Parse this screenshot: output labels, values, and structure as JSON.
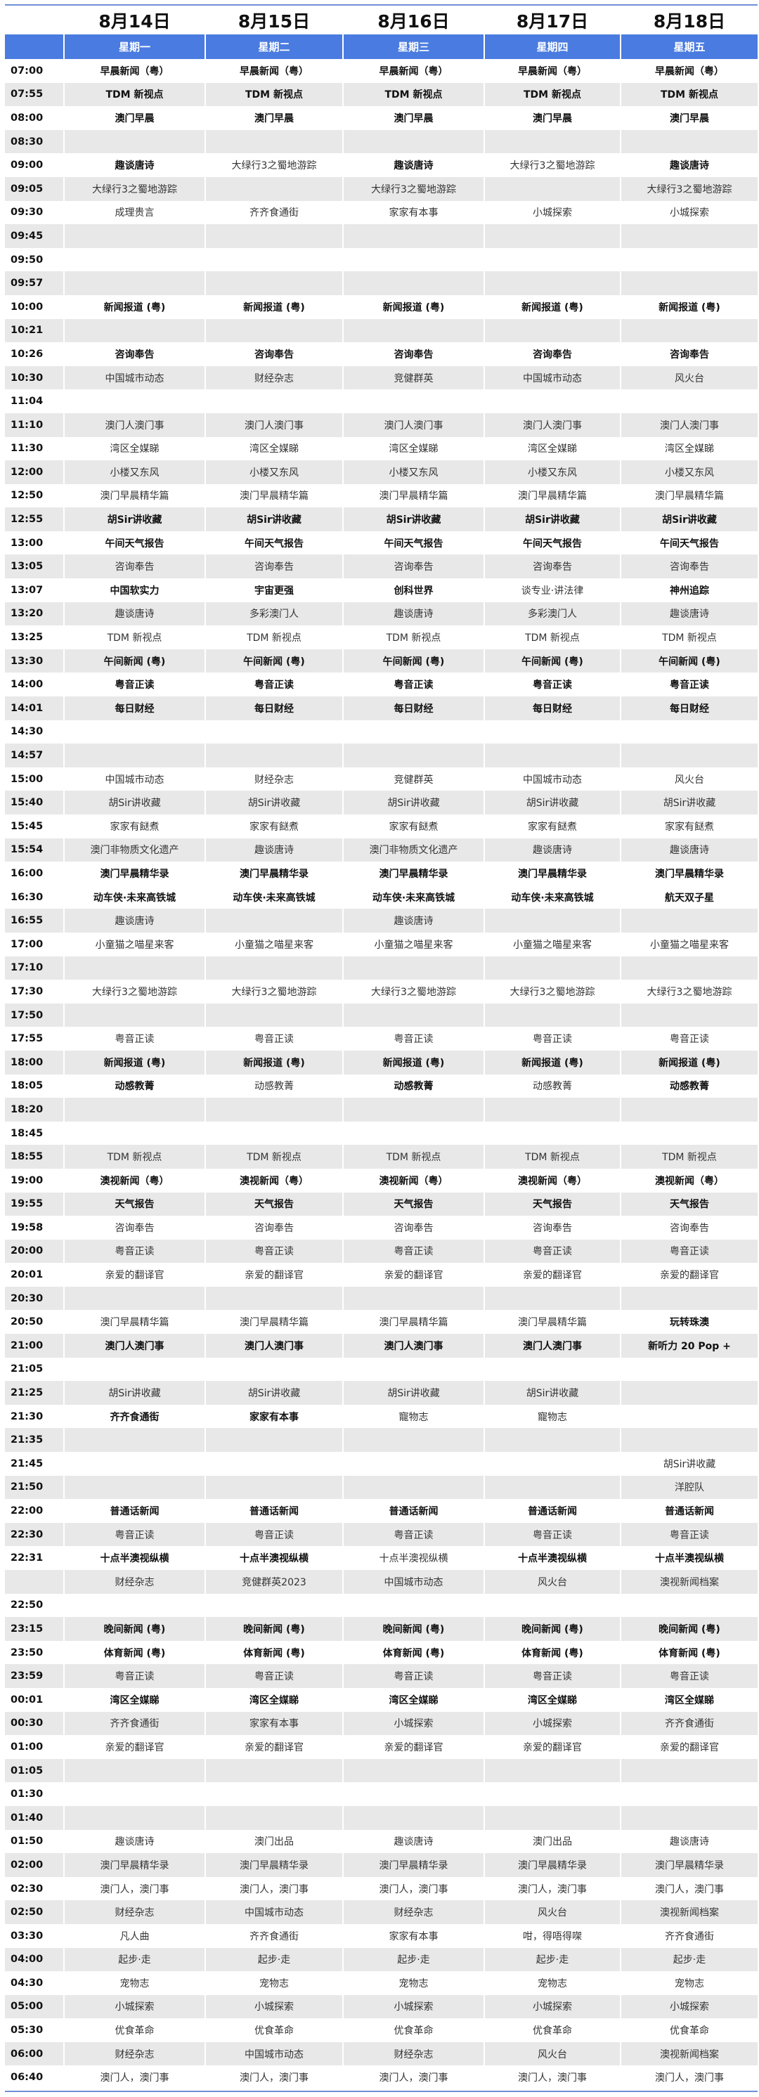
{
  "header": {
    "dates": [
      "8月14日",
      "8月15日",
      "8月16日",
      "8月17日",
      "8月18日"
    ],
    "weekdays": [
      "星期一",
      "星期二",
      "星期三",
      "星期四",
      "星期五"
    ]
  },
  "colors": {
    "header_blue": "#4a7be0",
    "row_shade": "#e8e8e8"
  },
  "rows": [
    {
      "time": "07:00",
      "cells": [
        "早晨新闻（粤）",
        "早晨新闻（粤）",
        "早晨新闻（粤）",
        "早晨新闻（粤）",
        "早晨新闻（粤）"
      ],
      "bold": [
        1,
        1,
        1,
        1,
        1
      ]
    },
    {
      "time": "07:55",
      "cells": [
        "TDM 新视点",
        "TDM 新视点",
        "TDM 新视点",
        "TDM 新视点",
        "TDM 新视点"
      ],
      "bold": [
        1,
        1,
        1,
        1,
        1
      ]
    },
    {
      "time": "08:00",
      "cells": [
        "澳门早晨",
        "澳门早晨",
        "澳门早晨",
        "澳门早晨",
        "澳门早晨"
      ],
      "bold": [
        1,
        1,
        1,
        1,
        1
      ]
    },
    {
      "time": "08:30",
      "cells": [
        "",
        "",
        "",
        "",
        ""
      ],
      "bold": [
        0,
        0,
        0,
        0,
        0
      ]
    },
    {
      "time": "09:00",
      "cells": [
        "趣谈唐诗",
        "大绿行3之蜀地游踪",
        "趣谈唐诗",
        "大绿行3之蜀地游踪",
        "趣谈唐诗"
      ],
      "bold": [
        1,
        0,
        1,
        0,
        1
      ]
    },
    {
      "time": "09:05",
      "cells": [
        "大绿行3之蜀地游踪",
        "",
        "大绿行3之蜀地游踪",
        "",
        "大绿行3之蜀地游踪"
      ],
      "bold": [
        0,
        0,
        0,
        0,
        0
      ]
    },
    {
      "time": "09:30",
      "cells": [
        "成理贵言",
        "齐齐食通街",
        "家家有本事",
        "小城探索",
        "小城探索"
      ],
      "bold": [
        0,
        0,
        0,
        0,
        0
      ]
    },
    {
      "time": "09:45",
      "cells": [
        "",
        "",
        "",
        "",
        ""
      ],
      "bold": [
        0,
        0,
        0,
        0,
        0
      ]
    },
    {
      "time": "09:50",
      "cells": [
        "",
        "",
        "",
        "",
        ""
      ],
      "bold": [
        0,
        0,
        0,
        0,
        0
      ]
    },
    {
      "time": "09:57",
      "cells": [
        "",
        "",
        "",
        "",
        ""
      ],
      "bold": [
        0,
        0,
        0,
        0,
        0
      ]
    },
    {
      "time": "10:00",
      "cells": [
        "新闻报道 (粤)",
        "新闻报道 (粤)",
        "新闻报道 (粤)",
        "新闻报道 (粤)",
        "新闻报道 (粤)"
      ],
      "bold": [
        1,
        1,
        1,
        1,
        1
      ]
    },
    {
      "time": "10:21",
      "cells": [
        "",
        "",
        "",
        "",
        ""
      ],
      "bold": [
        0,
        0,
        0,
        0,
        0
      ]
    },
    {
      "time": "10:26",
      "cells": [
        "咨询奉告",
        "咨询奉告",
        "咨询奉告",
        "咨询奉告",
        "咨询奉告"
      ],
      "bold": [
        1,
        1,
        1,
        1,
        1
      ]
    },
    {
      "time": "10:30",
      "cells": [
        "中国城市动态",
        "财经杂志",
        "竞健群英",
        "中国城市动态",
        "风火台"
      ],
      "bold": [
        0,
        0,
        0,
        0,
        0
      ]
    },
    {
      "time": "11:04",
      "cells": [
        "",
        "",
        "",
        "",
        ""
      ],
      "bold": [
        0,
        0,
        0,
        0,
        0
      ]
    },
    {
      "time": "11:10",
      "cells": [
        "澳门人澳门事",
        "澳门人澳门事",
        "澳门人澳门事",
        "澳门人澳门事",
        "澳门人澳门事"
      ],
      "bold": [
        0,
        0,
        0,
        0,
        0
      ]
    },
    {
      "time": "11:30",
      "cells": [
        "湾区全媒睇",
        "湾区全媒睇",
        "湾区全媒睇",
        "湾区全媒睇",
        "湾区全媒睇"
      ],
      "bold": [
        0,
        0,
        0,
        0,
        0
      ]
    },
    {
      "time": "12:00",
      "cells": [
        "小楼又东风",
        "小楼又东风",
        "小楼又东风",
        "小楼又东风",
        "小楼又东风"
      ],
      "bold": [
        0,
        0,
        0,
        0,
        0
      ]
    },
    {
      "time": "12:50",
      "cells": [
        "澳门早晨精华篇",
        "澳门早晨精华篇",
        "澳门早晨精华篇",
        "澳门早晨精华篇",
        "澳门早晨精华篇"
      ],
      "bold": [
        0,
        0,
        0,
        0,
        0
      ]
    },
    {
      "time": "12:55",
      "cells": [
        "胡Sir讲收藏",
        "胡Sir讲收藏",
        "胡Sir讲收藏",
        "胡Sir讲收藏",
        "胡Sir讲收藏"
      ],
      "bold": [
        1,
        1,
        1,
        1,
        1
      ]
    },
    {
      "time": "13:00",
      "cells": [
        "午间天气报告",
        "午间天气报告",
        "午间天气报告",
        "午间天气报告",
        "午间天气报告"
      ],
      "bold": [
        1,
        1,
        1,
        1,
        1
      ]
    },
    {
      "time": "13:05",
      "cells": [
        "咨询奉告",
        "咨询奉告",
        "咨询奉告",
        "咨询奉告",
        "咨询奉告"
      ],
      "bold": [
        0,
        0,
        0,
        0,
        0
      ]
    },
    {
      "time": "13:07",
      "cells": [
        "中国软实力",
        "宇宙更强",
        "创科世界",
        "谈专业·讲法律",
        "神州追踪"
      ],
      "bold": [
        1,
        1,
        1,
        0,
        1
      ]
    },
    {
      "time": "13:20",
      "cells": [
        "趣谈唐诗",
        "多彩澳门人",
        "趣谈唐诗",
        "多彩澳门人",
        "趣谈唐诗"
      ],
      "bold": [
        0,
        0,
        0,
        0,
        0
      ]
    },
    {
      "time": "13:25",
      "cells": [
        "TDM 新视点",
        "TDM 新视点",
        "TDM 新视点",
        "TDM 新视点",
        "TDM 新视点"
      ],
      "bold": [
        0,
        0,
        0,
        0,
        0
      ]
    },
    {
      "time": "13:30",
      "cells": [
        "午间新闻 (粤)",
        "午间新闻 (粤)",
        "午间新闻 (粤)",
        "午间新闻 (粤)",
        "午间新闻 (粤)"
      ],
      "bold": [
        1,
        1,
        1,
        1,
        1
      ]
    },
    {
      "time": "14:00",
      "cells": [
        "粤音正读",
        "粤音正读",
        "粤音正读",
        "粤音正读",
        "粤音正读"
      ],
      "bold": [
        1,
        1,
        1,
        1,
        1
      ]
    },
    {
      "time": "14:01",
      "cells": [
        "每日财经",
        "每日财经",
        "每日财经",
        "每日财经",
        "每日财经"
      ],
      "bold": [
        1,
        1,
        1,
        1,
        1
      ]
    },
    {
      "time": "14:30",
      "cells": [
        "",
        "",
        "",
        "",
        ""
      ],
      "bold": [
        0,
        0,
        0,
        0,
        0
      ]
    },
    {
      "time": "14:57",
      "cells": [
        "",
        "",
        "",
        "",
        ""
      ],
      "bold": [
        0,
        0,
        0,
        0,
        0
      ]
    },
    {
      "time": "15:00",
      "cells": [
        "中国城市动态",
        "财经杂志",
        "竞健群英",
        "中国城市动态",
        "风火台"
      ],
      "bold": [
        0,
        0,
        0,
        0,
        0
      ]
    },
    {
      "time": "15:40",
      "cells": [
        "胡Sir讲收藏",
        "胡Sir讲收藏",
        "胡Sir讲收藏",
        "胡Sir讲收藏",
        "胡Sir讲收藏"
      ],
      "bold": [
        0,
        0,
        0,
        0,
        0
      ]
    },
    {
      "time": "15:45",
      "cells": [
        "家家有餸煮",
        "家家有餸煮",
        "家家有餸煮",
        "家家有餸煮",
        "家家有餸煮"
      ],
      "bold": [
        0,
        0,
        0,
        0,
        0
      ]
    },
    {
      "time": "15:54",
      "cells": [
        "澳门非物质文化遗产",
        "趣谈唐诗",
        "澳门非物质文化遗产",
        "趣谈唐诗",
        "趣谈唐诗"
      ],
      "bold": [
        0,
        0,
        0,
        0,
        0
      ]
    },
    {
      "time": "16:00",
      "cells": [
        "澳门早晨精华录",
        "澳门早晨精华录",
        "澳门早晨精华录",
        "澳门早晨精华录",
        "澳门早晨精华录"
      ],
      "bold": [
        1,
        1,
        1,
        1,
        1
      ]
    },
    {
      "time": "16:30",
      "cells": [
        "动车侠·未来高铁城",
        "动车侠·未来高铁城",
        "动车侠·未来高铁城",
        "动车侠·未来高铁城",
        "航天双子星"
      ],
      "bold": [
        1,
        1,
        1,
        1,
        1
      ]
    },
    {
      "time": "16:55",
      "cells": [
        "趣谈唐诗",
        "",
        "趣谈唐诗",
        "",
        ""
      ],
      "bold": [
        0,
        0,
        0,
        0,
        0
      ]
    },
    {
      "time": "17:00",
      "cells": [
        "小童猫之喵星来客",
        "小童猫之喵星来客",
        "小童猫之喵星来客",
        "小童猫之喵星来客",
        "小童猫之喵星来客"
      ],
      "bold": [
        0,
        0,
        0,
        0,
        0
      ]
    },
    {
      "time": "17:10",
      "cells": [
        "",
        "",
        "",
        "",
        ""
      ],
      "bold": [
        0,
        0,
        0,
        0,
        0
      ]
    },
    {
      "time": "17:30",
      "cells": [
        "大绿行3之蜀地游踪",
        "大绿行3之蜀地游踪",
        "大绿行3之蜀地游踪",
        "大绿行3之蜀地游踪",
        "大绿行3之蜀地游踪"
      ],
      "bold": [
        0,
        0,
        0,
        0,
        0
      ]
    },
    {
      "time": "17:50",
      "cells": [
        "",
        "",
        "",
        "",
        ""
      ],
      "bold": [
        0,
        0,
        0,
        0,
        0
      ]
    },
    {
      "time": "17:55",
      "cells": [
        "粤音正读",
        "粤音正读",
        "粤音正读",
        "粤音正读",
        "粤音正读"
      ],
      "bold": [
        0,
        0,
        0,
        0,
        0
      ]
    },
    {
      "time": "18:00",
      "cells": [
        "新闻报道 (粤)",
        "新闻报道 (粤)",
        "新闻报道 (粤)",
        "新闻报道 (粤)",
        "新闻报道 (粤)"
      ],
      "bold": [
        1,
        1,
        1,
        1,
        1
      ]
    },
    {
      "time": "18:05",
      "cells": [
        "动感教菁",
        "动感教菁",
        "动感教菁",
        "动感教菁",
        "动感教菁"
      ],
      "bold": [
        1,
        0,
        1,
        0,
        1
      ]
    },
    {
      "time": "18:20",
      "cells": [
        "",
        "",
        "",
        "",
        ""
      ],
      "bold": [
        0,
        0,
        0,
        0,
        0
      ]
    },
    {
      "time": "18:45",
      "cells": [
        "",
        "",
        "",
        "",
        ""
      ],
      "bold": [
        0,
        0,
        0,
        0,
        0
      ]
    },
    {
      "time": "18:55",
      "cells": [
        "TDM 新视点",
        "TDM 新视点",
        "TDM 新视点",
        "TDM 新视点",
        "TDM 新视点"
      ],
      "bold": [
        0,
        0,
        0,
        0,
        0
      ]
    },
    {
      "time": "19:00",
      "cells": [
        "澳视新闻（粤）",
        "澳视新闻（粤）",
        "澳视新闻（粤）",
        "澳视新闻（粤）",
        "澳视新闻（粤）"
      ],
      "bold": [
        1,
        1,
        1,
        1,
        1
      ]
    },
    {
      "time": "19:55",
      "cells": [
        "天气报告",
        "天气报告",
        "天气报告",
        "天气报告",
        "天气报告"
      ],
      "bold": [
        1,
        1,
        1,
        1,
        1
      ]
    },
    {
      "time": "19:58",
      "cells": [
        "咨询奉告",
        "咨询奉告",
        "咨询奉告",
        "咨询奉告",
        "咨询奉告"
      ],
      "bold": [
        0,
        0,
        0,
        0,
        0
      ]
    },
    {
      "time": "20:00",
      "cells": [
        "粤音正读",
        "粤音正读",
        "粤音正读",
        "粤音正读",
        "粤音正读"
      ],
      "bold": [
        0,
        0,
        0,
        0,
        0
      ]
    },
    {
      "time": "20:01",
      "cells": [
        "亲爱的翻译官",
        "亲爱的翻译官",
        "亲爱的翻译官",
        "亲爱的翻译官",
        "亲爱的翻译官"
      ],
      "bold": [
        0,
        0,
        0,
        0,
        0
      ]
    },
    {
      "time": "20:30",
      "cells": [
        "",
        "",
        "",
        "",
        ""
      ],
      "bold": [
        0,
        0,
        0,
        0,
        0
      ]
    },
    {
      "time": "20:50",
      "cells": [
        "澳门早晨精华篇",
        "澳门早晨精华篇",
        "澳门早晨精华篇",
        "澳门早晨精华篇",
        "玩转珠澳"
      ],
      "bold": [
        0,
        0,
        0,
        0,
        1
      ]
    },
    {
      "time": "21:00",
      "cells": [
        "澳门人澳门事",
        "澳门人澳门事",
        "澳门人澳门事",
        "澳门人澳门事",
        "新听力 20 Pop +"
      ],
      "bold": [
        1,
        1,
        1,
        1,
        1
      ]
    },
    {
      "time": "21:05",
      "cells": [
        "",
        "",
        "",
        "",
        ""
      ],
      "bold": [
        0,
        0,
        0,
        0,
        0
      ]
    },
    {
      "time": "21:25",
      "cells": [
        "胡Sir讲收藏",
        "胡Sir讲收藏",
        "胡Sir讲收藏",
        "胡Sir讲收藏",
        ""
      ],
      "bold": [
        0,
        0,
        0,
        0,
        0
      ]
    },
    {
      "time": "21:30",
      "cells": [
        "齐齐食通街",
        "家家有本事",
        "寵物志",
        "寵物志",
        ""
      ],
      "bold": [
        1,
        1,
        0,
        0,
        0
      ]
    },
    {
      "time": "21:35",
      "cells": [
        "",
        "",
        "",
        "",
        ""
      ],
      "bold": [
        0,
        0,
        0,
        0,
        0
      ]
    },
    {
      "time": "21:45",
      "cells": [
        "",
        "",
        "",
        "",
        "胡Sir讲收藏"
      ],
      "bold": [
        0,
        0,
        0,
        0,
        0
      ]
    },
    {
      "time": "21:50",
      "cells": [
        "",
        "",
        "",
        "",
        "洋腔队"
      ],
      "bold": [
        0,
        0,
        0,
        0,
        0
      ]
    },
    {
      "time": "22:00",
      "cells": [
        "普通话新闻",
        "普通话新闻",
        "普通话新闻",
        "普通话新闻",
        "普通话新闻"
      ],
      "bold": [
        1,
        1,
        1,
        1,
        1
      ]
    },
    {
      "time": "22:30",
      "cells": [
        "粤音正读",
        "粤音正读",
        "粤音正读",
        "粤音正读",
        "粤音正读"
      ],
      "bold": [
        0,
        0,
        0,
        0,
        0
      ]
    },
    {
      "time": "22:31",
      "cells": [
        "十点半澳视纵横",
        "十点半澳视纵横",
        "十点半澳视纵横",
        "十点半澳视纵横",
        "十点半澳视纵横"
      ],
      "bold": [
        1,
        1,
        0,
        1,
        1
      ]
    },
    {
      "time": "",
      "cells": [
        "财经杂志",
        "竞健群英2023",
        "中国城市动态",
        "风火台",
        "澳视新闻档案"
      ],
      "bold": [
        0,
        0,
        0,
        0,
        0
      ]
    },
    {
      "time": "22:50",
      "cells": [
        "",
        "",
        "",
        "",
        ""
      ],
      "bold": [
        0,
        0,
        0,
        0,
        0
      ]
    },
    {
      "time": "23:15",
      "cells": [
        "晚间新闻 (粤)",
        "晚间新闻 (粤)",
        "晚间新闻 (粤)",
        "晚间新闻 (粤)",
        "晚间新闻 (粤)"
      ],
      "bold": [
        1,
        1,
        1,
        1,
        1
      ]
    },
    {
      "time": "23:50",
      "cells": [
        "体育新闻 (粤)",
        "体育新闻 (粤)",
        "体育新闻 (粤)",
        "体育新闻 (粤)",
        "体育新闻 (粤)"
      ],
      "bold": [
        1,
        1,
        1,
        1,
        1
      ]
    },
    {
      "time": "23:59",
      "cells": [
        "粤音正读",
        "粤音正读",
        "粤音正读",
        "粤音正读",
        "粤音正读"
      ],
      "bold": [
        0,
        0,
        0,
        0,
        0
      ]
    },
    {
      "time": "00:01",
      "cells": [
        "湾区全媒睇",
        "湾区全媒睇",
        "湾区全媒睇",
        "湾区全媒睇",
        "湾区全媒睇"
      ],
      "bold": [
        1,
        1,
        1,
        1,
        1
      ]
    },
    {
      "time": "00:30",
      "cells": [
        "齐齐食通街",
        "家家有本事",
        "小城探索",
        "小城探索",
        "齐齐食通街"
      ],
      "bold": [
        0,
        0,
        0,
        0,
        0
      ]
    },
    {
      "time": "01:00",
      "cells": [
        "亲爱的翻译官",
        "亲爱的翻译官",
        "亲爱的翻译官",
        "亲爱的翻译官",
        "亲爱的翻译官"
      ],
      "bold": [
        0,
        0,
        0,
        0,
        0
      ]
    },
    {
      "time": "01:05",
      "cells": [
        "",
        "",
        "",
        "",
        ""
      ],
      "bold": [
        0,
        0,
        0,
        0,
        0
      ]
    },
    {
      "time": "01:30",
      "cells": [
        "",
        "",
        "",
        "",
        ""
      ],
      "bold": [
        0,
        0,
        0,
        0,
        0
      ]
    },
    {
      "time": "01:40",
      "cells": [
        "",
        "",
        "",
        "",
        ""
      ],
      "bold": [
        0,
        0,
        0,
        0,
        0
      ]
    },
    {
      "time": "01:50",
      "cells": [
        "趣谈唐诗",
        "澳门出品",
        "趣谈唐诗",
        "澳门出品",
        "趣谈唐诗"
      ],
      "bold": [
        0,
        0,
        0,
        0,
        0
      ]
    },
    {
      "time": "02:00",
      "cells": [
        "澳门早晨精华录",
        "澳门早晨精华录",
        "澳门早晨精华录",
        "澳门早晨精华录",
        "澳门早晨精华录"
      ],
      "bold": [
        0,
        0,
        0,
        0,
        0
      ]
    },
    {
      "time": "02:30",
      "cells": [
        "澳门人，澳门事",
        "澳门人，澳门事",
        "澳门人，澳门事",
        "澳门人，澳门事",
        "澳门人，澳门事"
      ],
      "bold": [
        0,
        0,
        0,
        0,
        0
      ]
    },
    {
      "time": "02:50",
      "cells": [
        "财经杂志",
        "中国城市动态",
        "财经杂志",
        "风火台",
        "澳视新闻档案"
      ],
      "bold": [
        0,
        0,
        0,
        0,
        0
      ]
    },
    {
      "time": "03:30",
      "cells": [
        "凡人曲",
        "齐齐食通街",
        "家家有本事",
        "咁，得唔得㗎",
        "齐齐食通街"
      ],
      "bold": [
        0,
        0,
        0,
        0,
        0
      ]
    },
    {
      "time": "04:00",
      "cells": [
        "起步·走",
        "起步·走",
        "起步·走",
        "起步·走",
        "起步·走"
      ],
      "bold": [
        0,
        0,
        0,
        0,
        0
      ]
    },
    {
      "time": "04:30",
      "cells": [
        "宠物志",
        "宠物志",
        "宠物志",
        "宠物志",
        "宠物志"
      ],
      "bold": [
        0,
        0,
        0,
        0,
        0
      ]
    },
    {
      "time": "05:00",
      "cells": [
        "小城探索",
        "小城探索",
        "小城探索",
        "小城探索",
        "小城探索"
      ],
      "bold": [
        0,
        0,
        0,
        0,
        0
      ]
    },
    {
      "time": "05:30",
      "cells": [
        "优食革命",
        "优食革命",
        "优食革命",
        "优食革命",
        "优食革命"
      ],
      "bold": [
        0,
        0,
        0,
        0,
        0
      ]
    },
    {
      "time": "06:00",
      "cells": [
        "财经杂志",
        "中国城市动态",
        "财经杂志",
        "风火台",
        "澳视新闻档案"
      ],
      "bold": [
        0,
        0,
        0,
        0,
        0
      ]
    },
    {
      "time": "06:40",
      "cells": [
        "澳门人，澳门事",
        "澳门人，澳门事",
        "澳门人，澳门事",
        "澳门人，澳门事",
        "澳门人，澳门事"
      ],
      "bold": [
        0,
        0,
        0,
        0,
        0
      ]
    }
  ]
}
